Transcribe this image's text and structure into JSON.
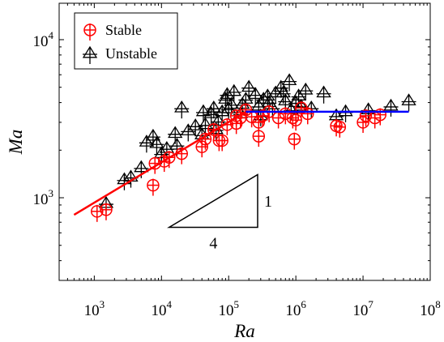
{
  "chart_data": {
    "type": "scatter",
    "title": "",
    "xlabel": "Ra",
    "ylabel": "Ma",
    "xscale": "log",
    "yscale": "log",
    "xlim": [
      300,
      100000000
    ],
    "ylim": [
      300,
      17000
    ],
    "x_ticks": [
      {
        "base": "10",
        "exp": "3",
        "value": 1000
      },
      {
        "base": "10",
        "exp": "4",
        "value": 10000
      },
      {
        "base": "10",
        "exp": "5",
        "value": 100000
      },
      {
        "base": "10",
        "exp": "6",
        "value": 1000000
      },
      {
        "base": "10",
        "exp": "7",
        "value": 10000000
      },
      {
        "base": "10",
        "exp": "8",
        "value": 100000000
      }
    ],
    "y_ticks": [
      {
        "base": "10",
        "exp": "3",
        "value": 1000
      },
      {
        "base": "10",
        "exp": "4",
        "value": 10000
      }
    ],
    "grid": false,
    "legend_position": "top-left",
    "series": [
      {
        "name": "Stable",
        "color": "#ff0000",
        "marker": "circle-plus",
        "points": [
          [
            1100,
            820
          ],
          [
            1500,
            840
          ],
          [
            7500,
            1200
          ],
          [
            8000,
            1650
          ],
          [
            11000,
            1700
          ],
          [
            13000,
            1800
          ],
          [
            20000,
            1900
          ],
          [
            40000,
            2100
          ],
          [
            45000,
            2350
          ],
          [
            72000,
            2300
          ],
          [
            80000,
            2300
          ],
          [
            95000,
            2900
          ],
          [
            130000,
            2950
          ],
          [
            150000,
            3200
          ],
          [
            180000,
            3600
          ],
          [
            220000,
            3250
          ],
          [
            280000,
            3000
          ],
          [
            320000,
            3300
          ],
          [
            400000,
            3500
          ],
          [
            550000,
            3200
          ],
          [
            700000,
            3400
          ],
          [
            900000,
            3200
          ],
          [
            950000,
            2350
          ],
          [
            1000000,
            3100
          ],
          [
            1200000,
            3700
          ],
          [
            1500000,
            3400
          ],
          [
            4000000,
            2850
          ],
          [
            4500000,
            2800
          ],
          [
            10000000,
            3000
          ],
          [
            11000000,
            3300
          ],
          [
            15000000,
            3200
          ],
          [
            18000000,
            3350
          ],
          [
            280000,
            2450
          ],
          [
            130000,
            3300
          ],
          [
            60000,
            2700
          ]
        ]
      },
      {
        "name": "Unstable",
        "color": "#000000",
        "marker": "triangle-plus",
        "points": [
          [
            1500,
            920
          ],
          [
            2800,
            1300
          ],
          [
            3500,
            1350
          ],
          [
            5000,
            1550
          ],
          [
            6000,
            2250
          ],
          [
            7500,
            2450
          ],
          [
            8500,
            2200
          ],
          [
            10000,
            1900
          ],
          [
            12000,
            2050
          ],
          [
            16000,
            2550
          ],
          [
            17000,
            2150
          ],
          [
            20000,
            3700
          ],
          [
            25000,
            2650
          ],
          [
            32000,
            2850
          ],
          [
            40000,
            2500
          ],
          [
            42000,
            3500
          ],
          [
            45000,
            2900
          ],
          [
            55000,
            3400
          ],
          [
            60000,
            3700
          ],
          [
            65000,
            2700
          ],
          [
            70000,
            3050
          ],
          [
            80000,
            3500
          ],
          [
            90000,
            4200
          ],
          [
            100000,
            3650
          ],
          [
            110000,
            3900
          ],
          [
            120000,
            4700
          ],
          [
            150000,
            3400
          ],
          [
            160000,
            3900
          ],
          [
            180000,
            4200
          ],
          [
            200000,
            5000
          ],
          [
            250000,
            4500
          ],
          [
            280000,
            3800
          ],
          [
            330000,
            4200
          ],
          [
            400000,
            4000
          ],
          [
            450000,
            3700
          ],
          [
            500000,
            4600
          ],
          [
            600000,
            5000
          ],
          [
            700000,
            4100
          ],
          [
            800000,
            5500
          ],
          [
            850000,
            3600
          ],
          [
            1000000,
            4000
          ],
          [
            1100000,
            4400
          ],
          [
            1200000,
            3800
          ],
          [
            1400000,
            4800
          ],
          [
            1700000,
            3700
          ],
          [
            2600000,
            4600
          ],
          [
            4000000,
            3300
          ],
          [
            5500000,
            3500
          ],
          [
            12000000,
            3600
          ],
          [
            26000000,
            3800
          ],
          [
            48000000,
            4100
          ],
          [
            95000,
            4500
          ],
          [
            300000,
            3300
          ],
          [
            650000,
            4600
          ],
          [
            380000,
            4400
          ]
        ]
      }
    ],
    "fit_lines": [
      {
        "color": "#ff0000",
        "from": [
          500,
          780
        ],
        "to": [
          180000,
          3500
        ]
      },
      {
        "color": "#0000ff",
        "from": [
          180000,
          3500
        ],
        "to": [
          48000000,
          3500
        ]
      }
    ],
    "slope_annotation": {
      "rise_label": "1",
      "run_label": "4",
      "corner_left": [
        13000,
        650
      ],
      "corner_right": [
        270000,
        650
      ],
      "corner_top": [
        270000,
        1400
      ]
    }
  }
}
